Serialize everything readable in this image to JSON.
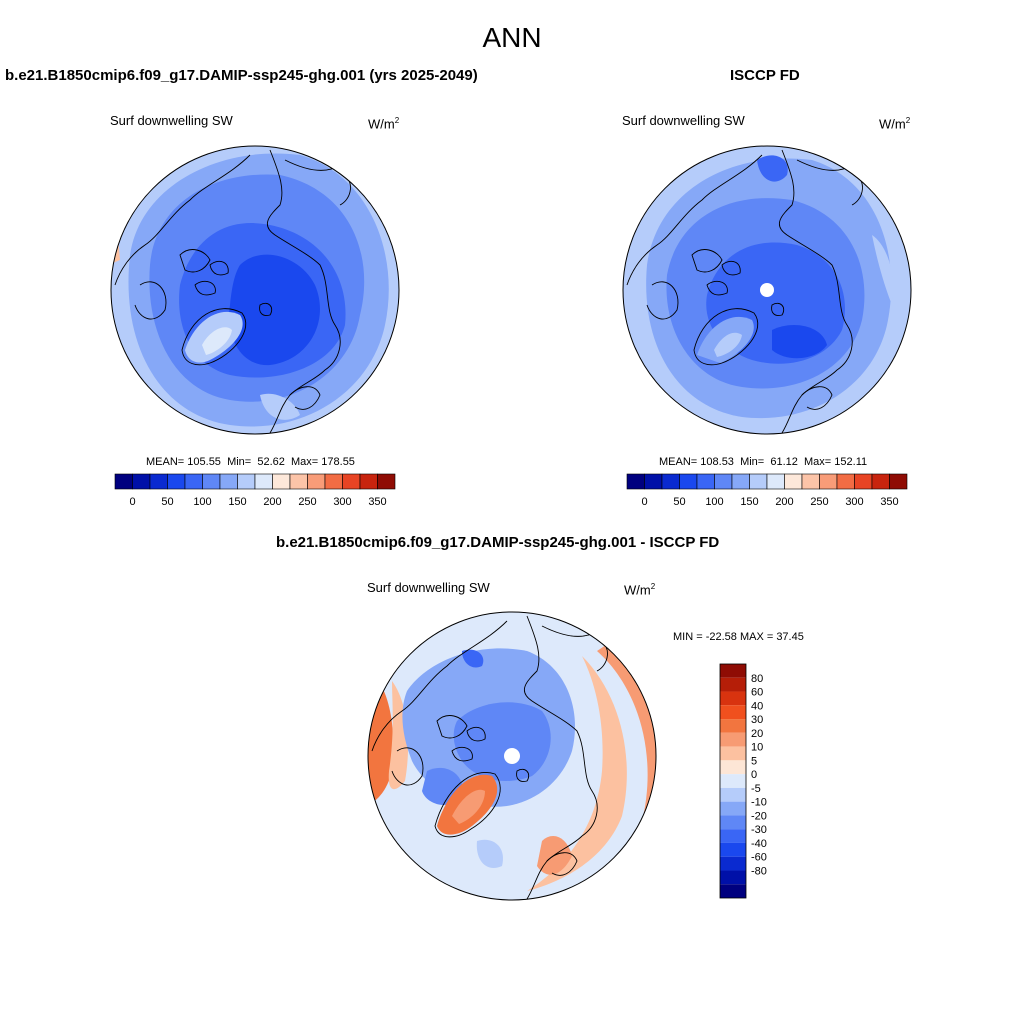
{
  "page": {
    "season": "ANN"
  },
  "panel_left": {
    "case_title": "b.e21.B1850cmip6.f09_g17.DAMIP-ssp245-ghg.001 (yrs 2025-2049)",
    "variable": "Surf downwelling SW",
    "units_base": "W/m",
    "units_exp": "2",
    "mean_label": "MEAN=",
    "mean": "105.55",
    "min_label": "Min=",
    "min": "52.62",
    "max_label": "Max=",
    "max": "178.55"
  },
  "panel_right": {
    "case_title": "ISCCP FD",
    "variable": "Surf downwelling SW",
    "units_base": "W/m",
    "units_exp": "2",
    "mean_label": "MEAN=",
    "mean": "108.53",
    "min_label": "Min=",
    "min": "61.12",
    "max_label": "Max=",
    "max": "152.11"
  },
  "panel_diff": {
    "case_title": "b.e21.B1850cmip6.f09_g17.DAMIP-ssp245-ghg.001 - ISCCP FD",
    "variable": "Surf downwelling SW",
    "units_base": "W/m",
    "units_exp": "2",
    "minmax_label": "MIN = -22.58 MAX =  37.45"
  },
  "colorbar_abs": {
    "colors": [
      "#00007f",
      "#0010a8",
      "#0a2ad0",
      "#1a48ee",
      "#3a66f5",
      "#5f87f6",
      "#86a8f7",
      "#b5ccfa",
      "#dde9fb",
      "#fde8da",
      "#fcc4a8",
      "#f89c78",
      "#f26c44",
      "#e84424",
      "#c8240e",
      "#8f0c04"
    ],
    "tick_labels": [
      "0",
      "50",
      "100",
      "150",
      "200",
      "250",
      "300",
      "350"
    ]
  },
  "colorbar_diff": {
    "colors": [
      "#8f0c04",
      "#b51e08",
      "#d8330f",
      "#f0501e",
      "#f2753f",
      "#f79b73",
      "#fcc1a0",
      "#fde6d6",
      "#dde9fb",
      "#b5ccfa",
      "#86a8f7",
      "#5f87f6",
      "#3a66f5",
      "#1a48ee",
      "#0a2ad0",
      "#0010a8",
      "#00007f"
    ],
    "tick_labels": [
      "80",
      "60",
      "40",
      "30",
      "20",
      "10",
      "5",
      "0",
      "-5",
      "-10",
      "-20",
      "-30",
      "-40",
      "-60",
      "-80"
    ]
  },
  "map_colors": {
    "deep_blue": "#1a48ee",
    "mid_blue": "#3a66f5",
    "blue": "#5f87f6",
    "light_blue": "#86a8f7",
    "pale_blue": "#b5ccfa",
    "very_pale_blue": "#dde9fb",
    "pale_orange": "#fde6d6",
    "light_orange": "#fcc1a0",
    "orange": "#f79b73",
    "dark_orange": "#f2753f",
    "coastline": "#000000"
  }
}
